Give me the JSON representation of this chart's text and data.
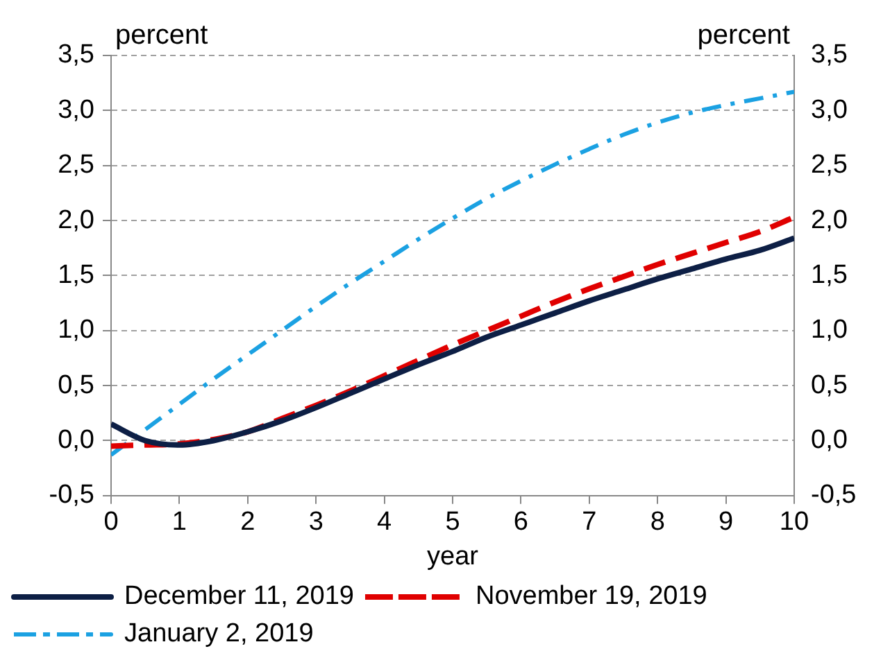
{
  "chart_data": {
    "type": "line",
    "xlabel": "year",
    "ylabel": "percent",
    "y2label": "percent",
    "x": [
      0,
      0.5,
      1,
      1.5,
      2,
      2.5,
      3,
      3.5,
      4,
      4.5,
      5,
      5.5,
      6,
      6.5,
      7,
      7.5,
      8,
      8.5,
      9,
      9.5,
      10
    ],
    "series": [
      {
        "name": "December 11, 2019",
        "color": "#0d1f45",
        "line_style": "solid",
        "values": [
          0.15,
          0.0,
          -0.04,
          0.0,
          0.08,
          0.18,
          0.3,
          0.43,
          0.56,
          0.69,
          0.81,
          0.94,
          1.05,
          1.16,
          1.27,
          1.37,
          1.47,
          1.56,
          1.65,
          1.73,
          1.84
        ]
      },
      {
        "name": "November 19, 2019",
        "color": "#e00000",
        "line_style": "dashed",
        "values": [
          -0.05,
          -0.04,
          -0.03,
          0.01,
          0.08,
          0.2,
          0.32,
          0.45,
          0.59,
          0.73,
          0.87,
          1.0,
          1.13,
          1.26,
          1.38,
          1.49,
          1.6,
          1.7,
          1.8,
          1.9,
          2.03
        ]
      },
      {
        "name": "January 2, 2019",
        "color": "#1ba1e2",
        "line_style": "dashdot",
        "values": [
          -0.13,
          0.1,
          0.33,
          0.56,
          0.78,
          1.0,
          1.22,
          1.43,
          1.63,
          1.83,
          2.02,
          2.2,
          2.36,
          2.51,
          2.65,
          2.78,
          2.89,
          2.98,
          3.05,
          3.11,
          3.17
        ]
      }
    ],
    "xlim": [
      0,
      10
    ],
    "xticks": [
      0,
      1,
      2,
      3,
      4,
      5,
      6,
      7,
      8,
      9,
      10
    ],
    "ylim": [
      -0.5,
      3.5
    ],
    "yticks": [
      {
        "value": -0.5,
        "label": "-0,5"
      },
      {
        "value": 0,
        "label": "0,0"
      },
      {
        "value": 0.5,
        "label": "0,5"
      },
      {
        "value": 1,
        "label": "1,0"
      },
      {
        "value": 1.5,
        "label": "1,5"
      },
      {
        "value": 2,
        "label": "2,0"
      },
      {
        "value": 2.5,
        "label": "2,5"
      },
      {
        "value": 3,
        "label": "3,0"
      },
      {
        "value": 3.5,
        "label": "3,5"
      }
    ],
    "y2lim": [
      -0.5,
      3.5
    ],
    "y2ticks": [
      {
        "value": -0.5,
        "label": "-0,5"
      },
      {
        "value": 0,
        "label": "0,0"
      },
      {
        "value": 0.5,
        "label": "0,5"
      },
      {
        "value": 1,
        "label": "1,0"
      },
      {
        "value": 1.5,
        "label": "1,5"
      },
      {
        "value": 2,
        "label": "2,0"
      },
      {
        "value": 2.5,
        "label": "2,5"
      },
      {
        "value": 3,
        "label": "3,0"
      },
      {
        "value": 3.5,
        "label": "3,5"
      }
    ],
    "grid": "y",
    "legend": "bottom",
    "marker": "none"
  }
}
